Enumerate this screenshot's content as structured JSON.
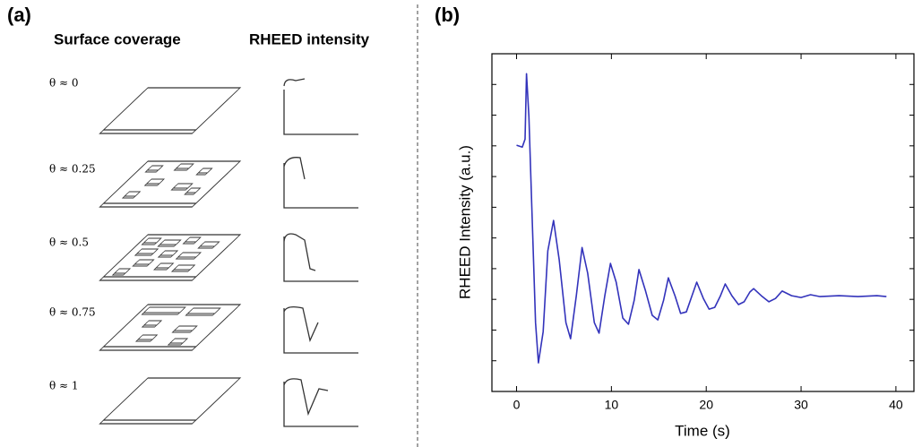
{
  "panel_a": {
    "label": "(a)",
    "headers": [
      "Surface coverage",
      "RHEED intensity"
    ],
    "rows": [
      "θ ≈ 0",
      "θ ≈ 0.25",
      "θ ≈ 0.5",
      "θ ≈ 0.75",
      "θ ≈ 1"
    ]
  },
  "chart_data": {
    "type": "line",
    "panel_label": "(b)",
    "x_label": "Time (s)",
    "y_label": "RHEED Intensity (a.u.)",
    "xlim": [
      -2.6,
      41.9
    ],
    "ylim": [
      0,
      11
    ],
    "xticks": [
      0,
      10,
      20,
      30,
      40
    ],
    "x": [
      0,
      0.6,
      0.9,
      1.05,
      1.3,
      1.6,
      2.0,
      2.3,
      2.8,
      3.3,
      3.9,
      4.5,
      5.2,
      5.7,
      6.3,
      6.9,
      7.5,
      8.2,
      8.7,
      9.3,
      9.9,
      10.5,
      11.2,
      11.8,
      12.4,
      12.9,
      13.6,
      14.3,
      14.9,
      15.5,
      16.0,
      16.7,
      17.3,
      17.9,
      18.5,
      19.0,
      19.7,
      20.3,
      20.9,
      21.5,
      22.0,
      22.7,
      23.4,
      24.0,
      24.6,
      25.0,
      25.8,
      26.6,
      27.3,
      28.0,
      29,
      30,
      31,
      32,
      34,
      36,
      38,
      39
    ],
    "series": [
      {
        "color": "#3333bb",
        "values": [
          8.02,
          7.96,
          8.22,
          10.35,
          8.95,
          6.03,
          2.24,
          0.93,
          1.95,
          4.58,
          5.57,
          4.29,
          2.24,
          1.72,
          3.12,
          4.69,
          3.85,
          2.24,
          1.9,
          3.12,
          4.17,
          3.56,
          2.39,
          2.19,
          2.97,
          3.97,
          3.27,
          2.48,
          2.33,
          2.97,
          3.7,
          3.12,
          2.54,
          2.59,
          3.12,
          3.56,
          3.03,
          2.68,
          2.74,
          3.12,
          3.5,
          3.12,
          2.83,
          2.92,
          3.24,
          3.35,
          3.12,
          2.92,
          3.03,
          3.27,
          3.12,
          3.06,
          3.15,
          3.09,
          3.12,
          3.09,
          3.12,
          3.09
        ]
      }
    ]
  }
}
